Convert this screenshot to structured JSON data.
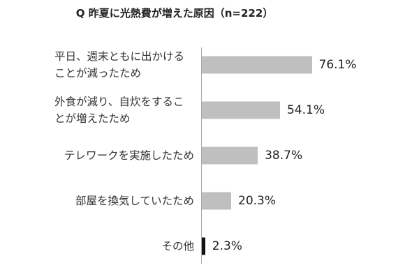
{
  "chart_data": {
    "type": "bar",
    "orientation": "horizontal",
    "title": "Q 昨夏に光熱費が増えた原因（n=222）",
    "categories": [
      "平日、週末ともに出かけることが減ったため",
      "外食が減り、自炊をすることが増えたため",
      "テレワークを実施したため",
      "部屋を換気していたため",
      "その他"
    ],
    "values": [
      76.1,
      54.1,
      38.7,
      20.3,
      2.3
    ],
    "value_labels": [
      "76.1%",
      "54.1%",
      "38.7%",
      "20.3%",
      "2.3%"
    ],
    "colors": [
      "#bfbfbf",
      "#bfbfbf",
      "#bfbfbf",
      "#bfbfbf",
      "#111111"
    ]
  }
}
